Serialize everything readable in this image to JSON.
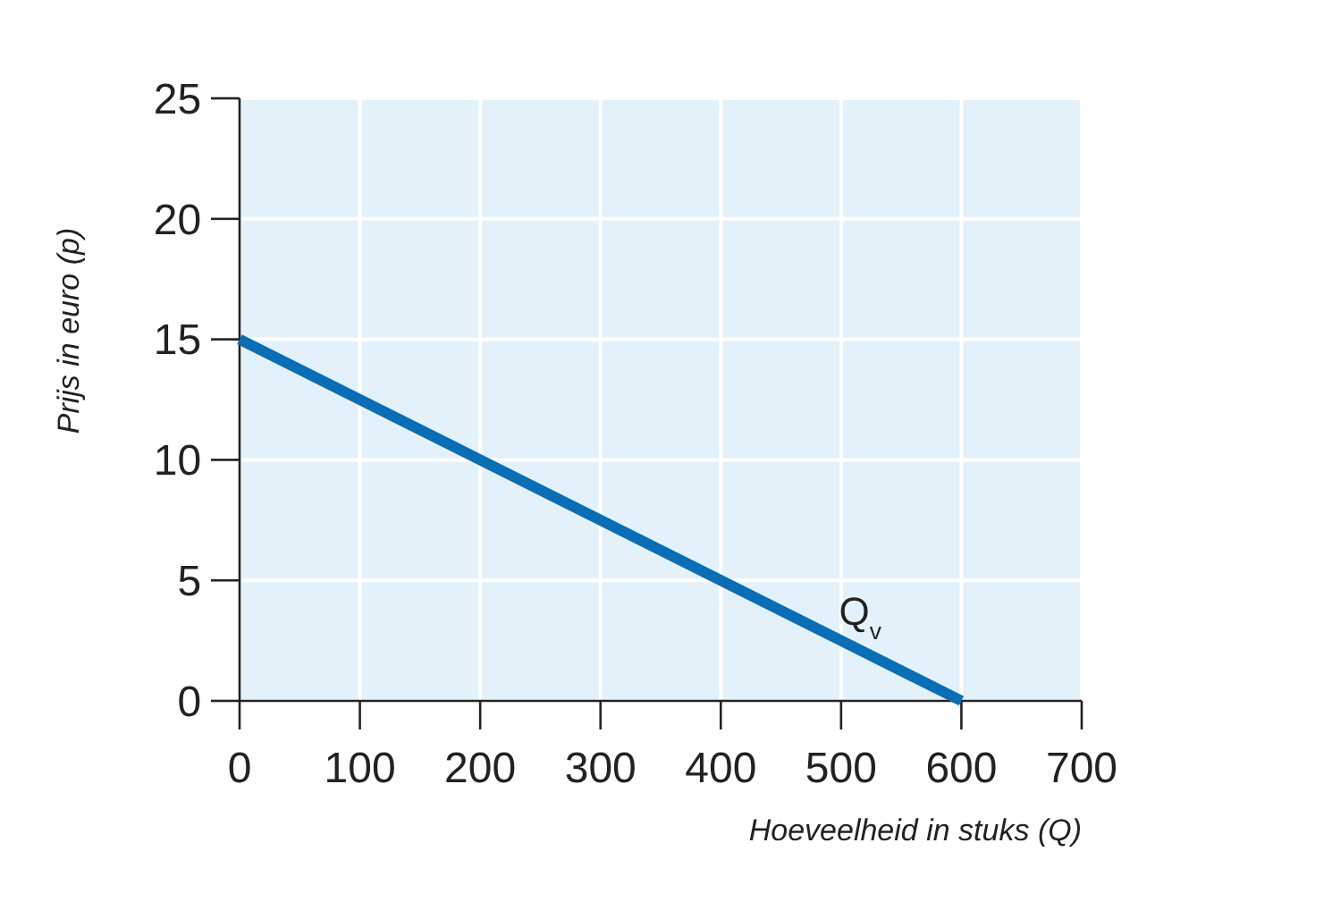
{
  "chart_data": {
    "type": "line",
    "xlabel": "Hoeveelheid in stuks (Q)",
    "ylabel": "Prijs in euro (p)",
    "x": [
      0,
      600
    ],
    "series": [
      {
        "name": "Q$_{v}$",
        "color": "#0b6db3",
        "values": [
          15,
          0
        ]
      }
    ],
    "xlim": [
      0,
      700
    ],
    "xticks": [
      0,
      100,
      200,
      300,
      400,
      500,
      600,
      700
    ],
    "ylim": [
      0,
      25
    ],
    "yticks": [
      0,
      5,
      10,
      15,
      20,
      25
    ],
    "grid": true,
    "marker": "none",
    "line_style": "solid"
  }
}
